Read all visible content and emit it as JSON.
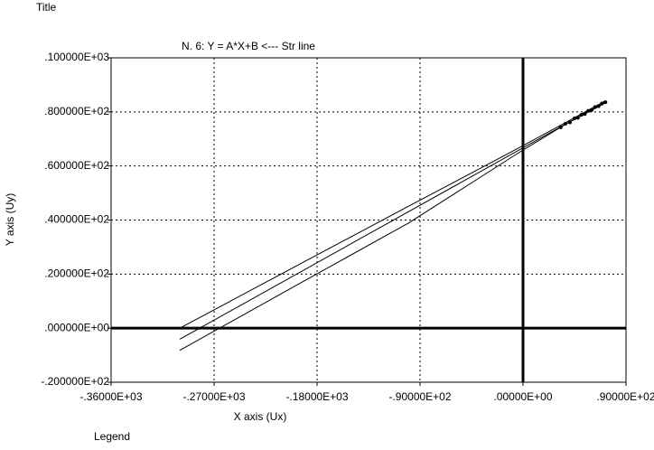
{
  "chart_data": {
    "type": "line",
    "title": "Title",
    "subtitle": "N. 6:   Y = A*X+B <--- Str  line",
    "x_label": "X axis (Ux)",
    "y_label": "Y axis (Uy)",
    "legend_title": "Legend",
    "xlim": [
      -360,
      90
    ],
    "ylim": [
      -20,
      100
    ],
    "xticks": [
      {
        "value": -360,
        "label": "-.36000E+03"
      },
      {
        "value": -270,
        "label": "-.27000E+03"
      },
      {
        "value": -180,
        "label": "-.18000E+03"
      },
      {
        "value": -90,
        "label": "-.90000E+02"
      },
      {
        "value": 0,
        "label": ".00000E+00"
      },
      {
        "value": 90,
        "label": ".90000E+02"
      }
    ],
    "yticks": [
      {
        "value": -20,
        "label": "-.200000E+02"
      },
      {
        "value": 0,
        "label": ".000000E+00"
      },
      {
        "value": 20,
        "label": ".200000E+02"
      },
      {
        "value": 40,
        "label": ".400000E+02"
      },
      {
        "value": 60,
        "label": ".600000E+02"
      },
      {
        "value": 80,
        "label": ".800000E+02"
      },
      {
        "value": 100,
        "label": ".100000E+03"
      }
    ],
    "grid": true,
    "zero_lines": true,
    "series": [
      {
        "color": "#000000",
        "markers": false,
        "x": [
          -300,
          72
        ],
        "values": [
          -4.1,
          83.7
        ]
      },
      {
        "color": "#000000",
        "markers": false,
        "x": [
          -300,
          -200,
          -100,
          0,
          40,
          72
        ],
        "values": [
          0.0,
          22.6,
          45.1,
          67.5,
          76.7,
          84.1
        ]
      },
      {
        "color": "#000000",
        "markers": false,
        "x": [
          -300,
          -200,
          -100,
          0,
          40,
          72
        ],
        "values": [
          -8.2,
          15.4,
          38.9,
          65.9,
          76.1,
          83.3
        ]
      },
      {
        "color": "#000000",
        "markers": true,
        "x": [
          33,
          37,
          41,
          45,
          48,
          51,
          54,
          57,
          60,
          63,
          66,
          69,
          72
        ],
        "values": [
          74.3,
          75.6,
          76.1,
          77.6,
          77.8,
          78.9,
          79.2,
          80.4,
          80.7,
          81.8,
          82.1,
          83.1,
          83.6
        ]
      }
    ]
  }
}
